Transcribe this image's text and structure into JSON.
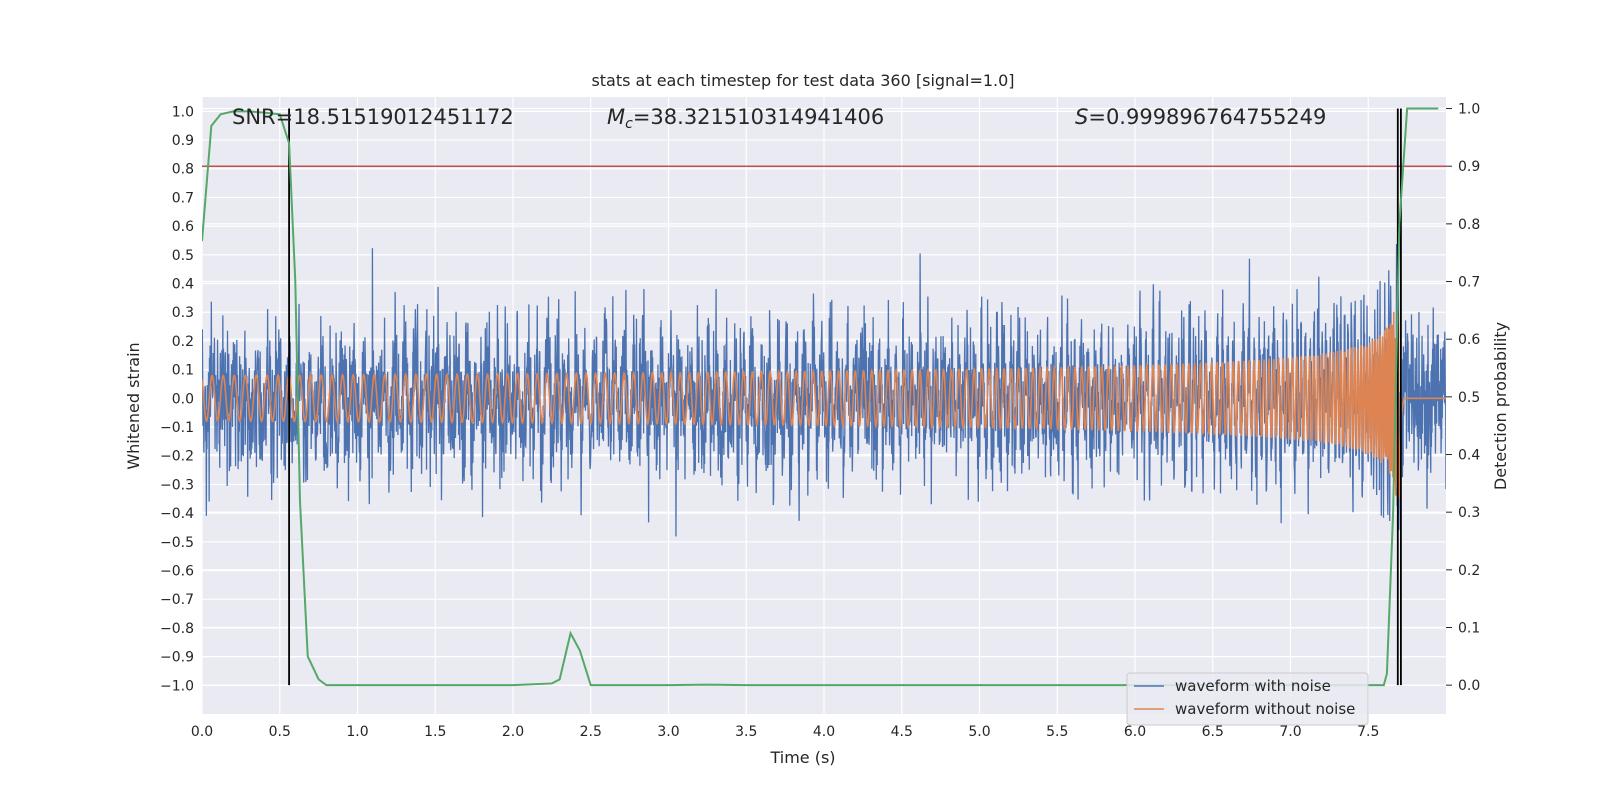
{
  "chart_data": {
    "type": "line",
    "title": "stats at each timestep for test data 360 [signal=1.0]",
    "xlabel": "Time (s)",
    "ylabel_left": "Whitened strain",
    "ylabel_right": "Detection probability",
    "xlim": [
      0,
      8
    ],
    "ylim_left": [
      -1.1,
      1.05
    ],
    "ylim_right": [
      -0.05,
      1.02
    ],
    "x_ticks": [
      "0.0",
      "0.5",
      "1.0",
      "1.5",
      "2.0",
      "2.5",
      "3.0",
      "3.5",
      "4.0",
      "4.5",
      "5.0",
      "5.5",
      "6.0",
      "6.5",
      "7.0",
      "7.5"
    ],
    "y_left_ticks": [
      "1.0",
      "0.9",
      "0.8",
      "0.7",
      "0.6",
      "0.5",
      "0.4",
      "0.3",
      "0.2",
      "0.1",
      "0.0",
      "−0.1",
      "−0.2",
      "−0.3",
      "−0.4",
      "−0.5",
      "−0.6",
      "−0.7",
      "−0.8",
      "−0.9",
      "−1.0"
    ],
    "y_right_ticks": [
      "1.0",
      "0.9",
      "0.8",
      "0.7",
      "0.6",
      "0.5",
      "0.4",
      "0.3",
      "0.2",
      "0.1",
      "0.0"
    ],
    "grid": true,
    "legend_position": "bottom-right",
    "annotations": {
      "snr": "SNR=18.51519012451172",
      "mc_symbol": "M",
      "mc_sub": "c",
      "mc_value": "=38.321510314941406",
      "s_symbol": "S",
      "s_value": "=0.999896764755249"
    },
    "series": [
      {
        "name": "waveform with noise",
        "color": "#4c72b0",
        "type": "noise",
        "amplitude_std": 0.12,
        "x_range": [
          0,
          8
        ]
      },
      {
        "name": "waveform without noise",
        "color": "#dd8452",
        "type": "chirp",
        "merger_time": 7.7,
        "peak_amplitude": 0.35
      }
    ],
    "detection_probability": {
      "color": "#55a868",
      "x": [
        0.0,
        0.06,
        0.12,
        0.2,
        0.3,
        0.4,
        0.5,
        0.56,
        0.6,
        0.63,
        0.68,
        0.75,
        0.8,
        1.0,
        1.5,
        2.0,
        2.25,
        2.3,
        2.37,
        2.43,
        2.5,
        2.6,
        3.0,
        3.25,
        3.5,
        4.0,
        5.0,
        6.0,
        7.0,
        7.5,
        7.6,
        7.62,
        7.66,
        7.7,
        7.75,
        7.8,
        7.95
      ],
      "y": [
        0.77,
        0.97,
        0.99,
        0.995,
        0.995,
        0.993,
        0.99,
        0.94,
        0.7,
        0.32,
        0.05,
        0.01,
        0.0,
        0.0,
        0.0,
        0.0,
        0.003,
        0.01,
        0.09,
        0.06,
        0.0,
        0.0,
        0.0,
        0.001,
        0.0,
        0.0,
        0.0,
        0.0,
        0.0,
        0.0,
        0.0,
        0.02,
        0.3,
        0.8,
        1.0,
        1.0,
        1.0
      ]
    },
    "threshold": {
      "color": "#c44e52",
      "y": 0.9
    },
    "vertical_lines": {
      "color": "#000000",
      "x": [
        0.56,
        7.69,
        7.71
      ]
    }
  }
}
